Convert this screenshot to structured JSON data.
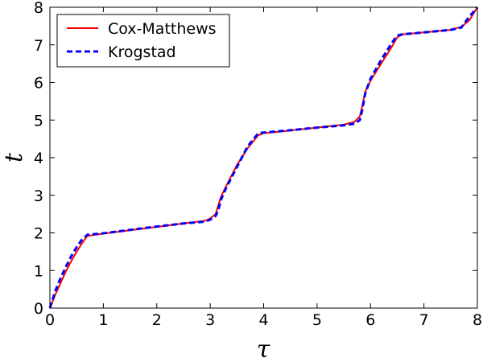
{
  "chart_data": {
    "type": "line",
    "title": "",
    "xlabel": "τ",
    "ylabel": "t",
    "xlim": [
      0,
      8
    ],
    "ylim": [
      0,
      8
    ],
    "xticks": [
      "0",
      "1",
      "2",
      "3",
      "4",
      "5",
      "6",
      "7",
      "8"
    ],
    "yticks": [
      "0",
      "1",
      "2",
      "3",
      "4",
      "5",
      "6",
      "7",
      "8"
    ],
    "grid": false,
    "legend_position": "top-left",
    "series": [
      {
        "name": "Cox-Matthews",
        "color": "#ff0000",
        "style": "solid",
        "x": [
          0,
          0.1,
          0.2,
          0.3,
          0.4,
          0.5,
          0.6,
          0.7,
          1.0,
          1.5,
          2.0,
          2.5,
          2.9,
          3.0,
          3.1,
          3.2,
          3.3,
          3.5,
          3.7,
          3.9,
          4.0,
          4.5,
          5.0,
          5.5,
          5.7,
          5.8,
          5.85,
          5.9,
          6.0,
          6.2,
          6.4,
          6.5,
          6.6,
          7.0,
          7.5,
          7.7,
          7.85,
          8.0
        ],
        "y": [
          0,
          0.35,
          0.67,
          0.98,
          1.25,
          1.5,
          1.72,
          1.92,
          1.98,
          2.07,
          2.16,
          2.25,
          2.32,
          2.38,
          2.5,
          2.95,
          3.25,
          3.8,
          4.25,
          4.6,
          4.65,
          4.72,
          4.8,
          4.88,
          4.95,
          5.1,
          5.4,
          5.75,
          6.05,
          6.5,
          6.95,
          7.2,
          7.28,
          7.33,
          7.4,
          7.48,
          7.65,
          8.0
        ]
      },
      {
        "name": "Krogstad",
        "color": "#0000ff",
        "style": "dashed",
        "x": [
          0,
          0.1,
          0.2,
          0.3,
          0.4,
          0.5,
          0.6,
          0.7,
          1.0,
          1.5,
          2.0,
          2.5,
          2.9,
          3.0,
          3.1,
          3.15,
          3.2,
          3.3,
          3.5,
          3.7,
          3.9,
          4.0,
          4.5,
          5.0,
          5.5,
          5.7,
          5.8,
          5.85,
          5.9,
          6.0,
          6.2,
          6.4,
          6.5,
          6.6,
          7.0,
          7.5,
          7.7,
          7.85,
          8.0
        ],
        "y": [
          0,
          0.45,
          0.8,
          1.1,
          1.38,
          1.62,
          1.82,
          1.95,
          1.99,
          2.08,
          2.17,
          2.25,
          2.3,
          2.35,
          2.45,
          2.6,
          2.88,
          3.2,
          3.75,
          4.3,
          4.65,
          4.67,
          4.73,
          4.8,
          4.86,
          4.9,
          5.0,
          5.3,
          5.7,
          6.1,
          6.6,
          7.05,
          7.25,
          7.28,
          7.33,
          7.4,
          7.46,
          7.75,
          8.0
        ]
      }
    ]
  }
}
